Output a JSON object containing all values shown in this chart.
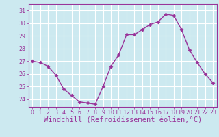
{
  "x": [
    0,
    1,
    2,
    3,
    4,
    5,
    6,
    7,
    8,
    9,
    10,
    11,
    12,
    13,
    14,
    15,
    16,
    17,
    18,
    19,
    20,
    21,
    22,
    23
  ],
  "y": [
    27.0,
    26.9,
    26.6,
    25.9,
    24.8,
    24.3,
    23.8,
    23.7,
    23.6,
    25.0,
    26.6,
    27.5,
    29.1,
    29.1,
    29.5,
    29.9,
    30.1,
    30.7,
    30.6,
    29.5,
    27.9,
    26.9,
    26.0,
    25.3
  ],
  "line_color": "#993399",
  "marker": "D",
  "marker_size": 2.5,
  "line_width": 1.0,
  "xlabel": "Windchill (Refroidissement éolien,°C)",
  "xlim": [
    -0.5,
    23.5
  ],
  "ylim": [
    23.4,
    31.5
  ],
  "yticks": [
    24,
    25,
    26,
    27,
    28,
    29,
    30,
    31
  ],
  "xticks": [
    0,
    1,
    2,
    3,
    4,
    5,
    6,
    7,
    8,
    9,
    10,
    11,
    12,
    13,
    14,
    15,
    16,
    17,
    18,
    19,
    20,
    21,
    22,
    23
  ],
  "background_color": "#cce9f0",
  "grid_color": "#ffffff",
  "line_label_color": "#993399",
  "xlabel_fontsize": 7.5,
  "tick_fontsize": 6.0,
  "fig_width": 3.2,
  "fig_height": 2.0,
  "dpi": 100
}
